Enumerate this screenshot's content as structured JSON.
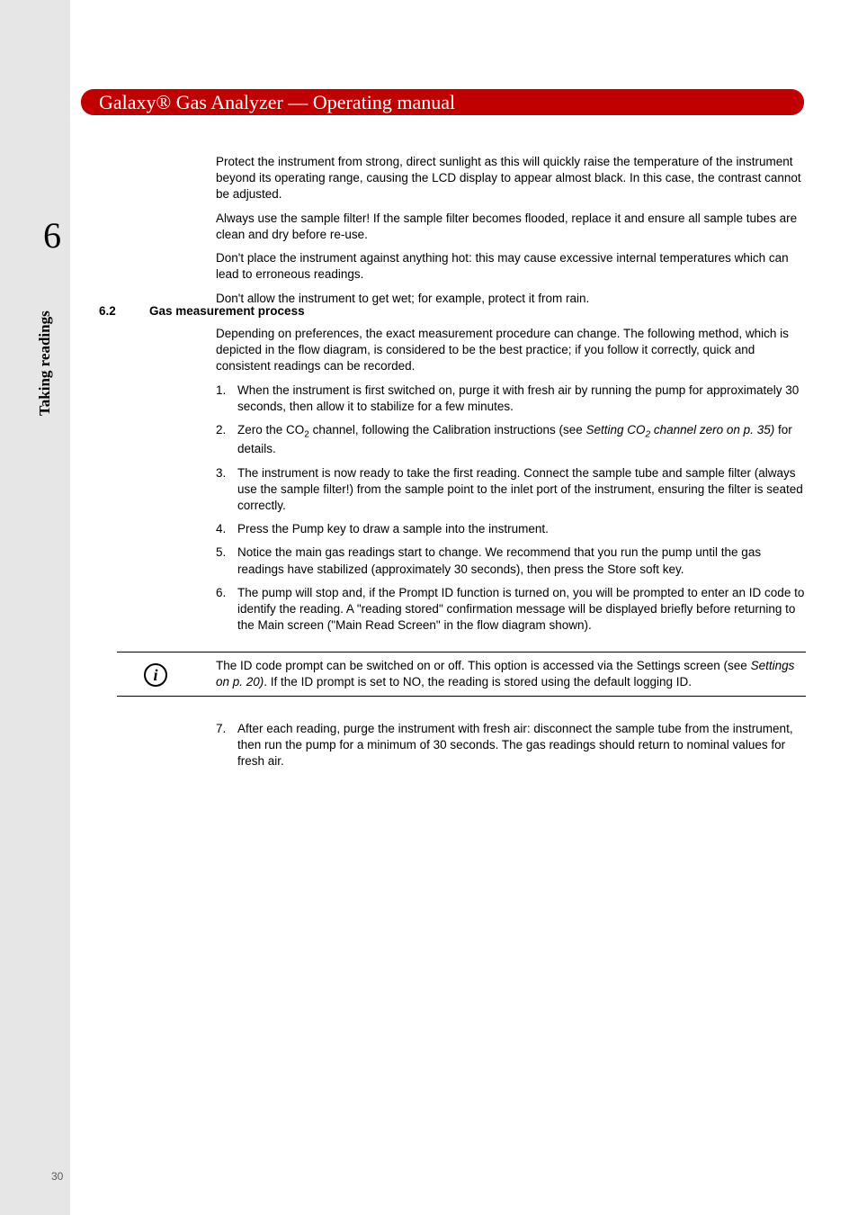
{
  "sidebar": {
    "chapter_number": "6",
    "side_label": "Taking readings",
    "page_number": "30"
  },
  "header": {
    "title": "Galaxy® Gas Analyzer  —  Operating manual"
  },
  "intro_paragraphs": [
    "Protect the instrument from strong, direct sunlight as this will quickly raise the temperature of the instrument beyond its operating range, causing the LCD display to appear almost black. In this case, the contrast cannot be adjusted.",
    "Always use the sample filter! If the sample filter becomes flooded, replace it and ensure all sample tubes are clean and dry before re-use.",
    "Don't place the instrument against anything hot: this may cause excessive internal temperatures which can lead to erroneous readings.",
    "Don't allow the instrument to get wet; for example, protect it from rain."
  ],
  "section": {
    "number": "6.2",
    "title": "Gas measurement process",
    "intro": "Depending on preferences, the exact measurement procedure can change. The following method, which is depicted in the flow diagram, is considered to be the best practice; if you follow it correctly, quick and consistent readings can be recorded.",
    "steps": {
      "s1": " When the instrument is first switched on, purge it with fresh air by running the pump for approximately 30 seconds, then allow it to stabilize for a few minutes.",
      "s2_pre": "Zero the CO",
      "s2_sub": "2",
      "s2_mid": " channel, following the Calibration instructions (see ",
      "s2_italic_a": "Setting CO",
      "s2_italic_sub": "2",
      "s2_italic_b": " channel zero on p. 35)",
      "s2_post": " for details.",
      "s3": "The instrument is now ready to take the first reading. Connect the sample tube and sample filter (always use the sample filter!) from the sample point to the inlet port of the instrument, ensuring the filter is seated correctly.",
      "s4": "Press the Pump key to draw a sample into the instrument.",
      "s5": "Notice the main gas readings start to change. We recommend that you run the pump until the gas readings have stabilized (approximately 30 seconds), then press the Store soft key.",
      "s6": "The pump will stop and, if the Prompt ID function is turned on, you will be prompted to enter an ID code to identify the reading. A \"reading stored\" confirmation message will be displayed briefly before returning to the Main screen (\"Main Read Screen\" in the flow diagram shown)."
    }
  },
  "note": {
    "text_pre": "The ID code prompt can be switched on or off. This option is accessed via the Settings screen (see ",
    "text_italic": "Settings on p. 20)",
    "text_post": ". If the ID prompt is set to NO, the reading is stored using the default logging ID."
  },
  "step7": {
    "num": "7.",
    "text": "After each reading, purge the instrument with fresh air: disconnect the sample tube from the instrument, then run the pump for a minimum of 30 seconds. The gas readings should return to nominal values for fresh air."
  }
}
